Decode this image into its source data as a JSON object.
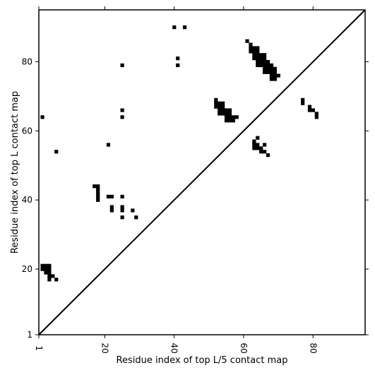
{
  "chart_data": {
    "type": "heatmap",
    "title": "",
    "xlabel": "Residue index of top L/5 contact map",
    "ylabel": "Residue index of top L contact map",
    "xlim": [
      1,
      95
    ],
    "ylim": [
      1,
      95
    ],
    "x_ticks": [
      1,
      20,
      40,
      60,
      80
    ],
    "y_ticks": [
      1,
      20,
      40,
      60,
      80
    ],
    "x_tick_rotation": "vertical",
    "diagonal_line": true,
    "grid": false,
    "legend": "none",
    "mark_color": "#000000",
    "series": [
      {
        "region": "upper-left triangle",
        "cells": [
          [
            2,
            64
          ],
          [
            2,
            21
          ],
          [
            3,
            21
          ],
          [
            4,
            21
          ],
          [
            2,
            20
          ],
          [
            3,
            20
          ],
          [
            4,
            20
          ],
          [
            3,
            19
          ],
          [
            4,
            19
          ],
          [
            4,
            18
          ],
          [
            4,
            17
          ],
          [
            5,
            18
          ],
          [
            6,
            17
          ],
          [
            6,
            54
          ],
          [
            17,
            44
          ],
          [
            18,
            44
          ],
          [
            18,
            43
          ],
          [
            18,
            42
          ],
          [
            18,
            41
          ],
          [
            18,
            40
          ],
          [
            21,
            56
          ],
          [
            21,
            41
          ],
          [
            22,
            41
          ],
          [
            22,
            38
          ],
          [
            22,
            37
          ],
          [
            25,
            41
          ],
          [
            25,
            38
          ],
          [
            25,
            37
          ],
          [
            25,
            35
          ],
          [
            28,
            37
          ],
          [
            29,
            35
          ],
          [
            25,
            79
          ],
          [
            25,
            66
          ],
          [
            25,
            64
          ],
          [
            40,
            90
          ],
          [
            43,
            90
          ],
          [
            41,
            81
          ],
          [
            41,
            79
          ]
        ]
      },
      {
        "region": "lower-right triangle",
        "cells": [
          [
            52,
            69
          ],
          [
            52,
            68
          ],
          [
            53,
            68
          ],
          [
            54,
            68
          ],
          [
            52,
            67
          ],
          [
            53,
            67
          ],
          [
            54,
            67
          ],
          [
            53,
            66
          ],
          [
            54,
            66
          ],
          [
            55,
            66
          ],
          [
            56,
            66
          ],
          [
            53,
            65
          ],
          [
            54,
            65
          ],
          [
            55,
            65
          ],
          [
            56,
            65
          ],
          [
            55,
            64
          ],
          [
            56,
            64
          ],
          [
            57,
            64
          ],
          [
            58,
            64
          ],
          [
            55,
            63
          ],
          [
            56,
            63
          ],
          [
            57,
            63
          ],
          [
            61,
            86
          ],
          [
            62,
            85
          ],
          [
            62,
            84
          ],
          [
            63,
            84
          ],
          [
            64,
            84
          ],
          [
            62,
            83
          ],
          [
            63,
            83
          ],
          [
            64,
            83
          ],
          [
            63,
            82
          ],
          [
            64,
            82
          ],
          [
            65,
            82
          ],
          [
            66,
            82
          ],
          [
            63,
            81
          ],
          [
            64,
            81
          ],
          [
            65,
            81
          ],
          [
            66,
            81
          ],
          [
            64,
            80
          ],
          [
            65,
            80
          ],
          [
            66,
            80
          ],
          [
            67,
            80
          ],
          [
            64,
            79
          ],
          [
            65,
            79
          ],
          [
            66,
            79
          ],
          [
            67,
            79
          ],
          [
            68,
            79
          ],
          [
            66,
            78
          ],
          [
            67,
            78
          ],
          [
            68,
            78
          ],
          [
            69,
            78
          ],
          [
            66,
            77
          ],
          [
            67,
            77
          ],
          [
            68,
            77
          ],
          [
            69,
            77
          ],
          [
            68,
            76
          ],
          [
            69,
            76
          ],
          [
            70,
            76
          ],
          [
            68,
            75
          ],
          [
            69,
            75
          ],
          [
            64,
            58
          ],
          [
            63,
            57
          ],
          [
            63,
            56
          ],
          [
            64,
            56
          ],
          [
            66,
            56
          ],
          [
            63,
            55
          ],
          [
            64,
            55
          ],
          [
            65,
            55
          ],
          [
            65,
            54
          ],
          [
            66,
            54
          ],
          [
            67,
            53
          ],
          [
            77,
            69
          ],
          [
            77,
            68
          ],
          [
            79,
            67
          ],
          [
            79,
            66
          ],
          [
            80,
            66
          ],
          [
            81,
            65
          ],
          [
            81,
            64
          ]
        ]
      }
    ]
  }
}
